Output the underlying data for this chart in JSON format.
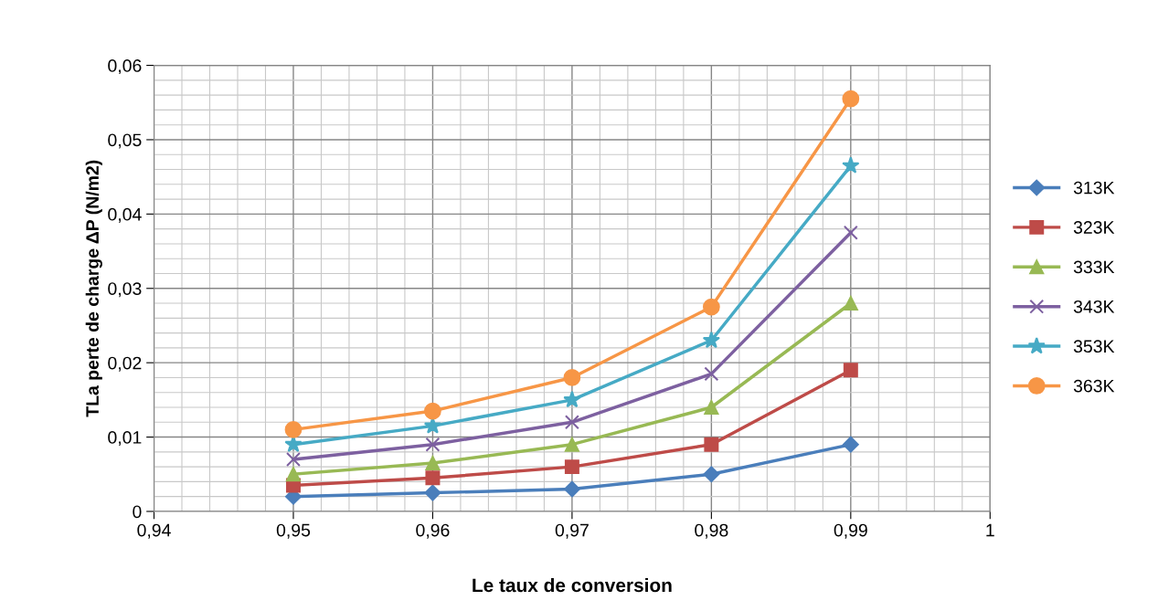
{
  "chart_data": {
    "type": "line",
    "xlabel": "Le taux de conversion",
    "ylabel": "TLa perte de charge ΔP (N/m2)",
    "x": [
      0.95,
      0.96,
      0.97,
      0.98,
      0.99
    ],
    "series": [
      {
        "name": "313K",
        "color": "#4a7ebb",
        "marker": "diamond",
        "values": [
          0.002,
          0.0025,
          0.003,
          0.005,
          0.009
        ]
      },
      {
        "name": "323K",
        "color": "#be4b48",
        "marker": "square",
        "values": [
          0.0035,
          0.0045,
          0.006,
          0.009,
          0.019
        ]
      },
      {
        "name": "333K",
        "color": "#98b954",
        "marker": "triangle",
        "values": [
          0.005,
          0.0065,
          0.009,
          0.014,
          0.028
        ]
      },
      {
        "name": "343K",
        "color": "#7d60a0",
        "marker": "cross",
        "values": [
          0.007,
          0.009,
          0.012,
          0.0185,
          0.0375
        ]
      },
      {
        "name": "353K",
        "color": "#46aac5",
        "marker": "star",
        "values": [
          0.009,
          0.0115,
          0.015,
          0.023,
          0.0465
        ]
      },
      {
        "name": "363K",
        "color": "#f79646",
        "marker": "circle",
        "values": [
          0.011,
          0.0135,
          0.018,
          0.0275,
          0.0555
        ]
      }
    ],
    "xlim": [
      0.94,
      1
    ],
    "xticks": [
      {
        "value": 0.94,
        "label": "0,94"
      },
      {
        "value": 0.95,
        "label": "0,95"
      },
      {
        "value": 0.96,
        "label": "0,96"
      },
      {
        "value": 0.97,
        "label": "0,97"
      },
      {
        "value": 0.98,
        "label": "0,98"
      },
      {
        "value": 0.99,
        "label": "0,99"
      },
      {
        "value": 1,
        "label": "1"
      }
    ],
    "ylim": [
      0,
      0.06
    ],
    "yticks": [
      {
        "value": 0,
        "label": "0"
      },
      {
        "value": 0.01,
        "label": "0,01"
      },
      {
        "value": 0.02,
        "label": "0,02"
      },
      {
        "value": 0.03,
        "label": "0,03"
      },
      {
        "value": 0.04,
        "label": "0,04"
      },
      {
        "value": 0.05,
        "label": "0,05"
      },
      {
        "value": 0.06,
        "label": "0,06"
      }
    ],
    "grid": true,
    "legend": "right"
  }
}
